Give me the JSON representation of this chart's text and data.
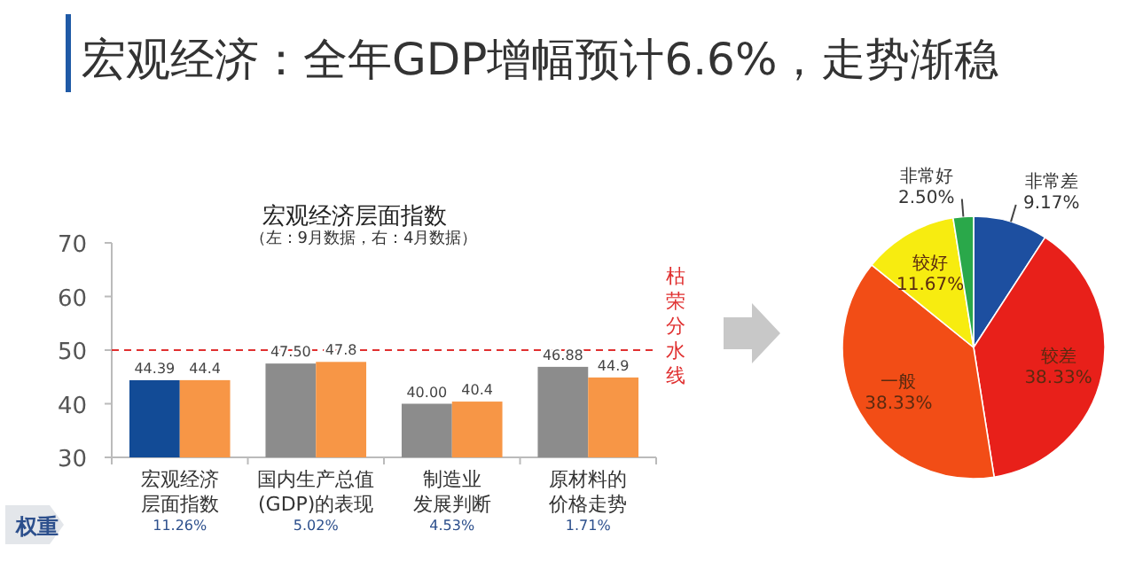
{
  "chart_data": [
    {
      "type": "bar",
      "title": "宏观经济层面指数",
      "subtitle": "（左：9月数据，右：4月数据）",
      "categories": [
        "宏观经济层面指数",
        "国内生产总值(GDP)的表现",
        "制造业发展判断",
        "原材料的价格走势"
      ],
      "series": [
        {
          "colors": [
            "#124b96",
            "#8c8c8c",
            "#8c8c8c",
            "#8c8c8c"
          ],
          "values": [
            44.39,
            47.5,
            40.0,
            46.88
          ],
          "value_labels": [
            "44.39",
            "47.50",
            "40.00",
            "46.88"
          ]
        },
        {
          "color": "#f79646",
          "values": [
            44.4,
            47.8,
            40.4,
            44.9
          ],
          "value_labels": [
            "44.4",
            "47.8",
            "40.4",
            "44.9"
          ]
        }
      ],
      "ylim": [
        30,
        70
      ],
      "yticks": [
        30,
        40,
        50,
        60,
        70
      ],
      "ref_lines": [
        {
          "axis": "y",
          "value": 50,
          "label": "枯荣分水线",
          "color": "#e03030",
          "line_style": "dashed"
        }
      ],
      "annotations": [
        "宏观经济：全年GDP增幅预计6.6%，走势渐稳",
        "权重",
        "11.26%",
        "5.02%",
        "4.53%",
        "1.71%"
      ]
    },
    {
      "type": "pie",
      "categories": [
        "非常差",
        "较差",
        "一般",
        "较好",
        "非常好"
      ],
      "values": [
        9.17,
        38.33,
        38.33,
        11.67,
        2.5
      ],
      "value_labels": [
        "9.17%",
        "38.33%",
        "38.33%",
        "11.67%",
        "2.50%"
      ],
      "colors": [
        "#1d4fa0",
        "#e8201a",
        "#f24d16",
        "#f7ec10",
        "#2aa84a"
      ]
    }
  ]
}
